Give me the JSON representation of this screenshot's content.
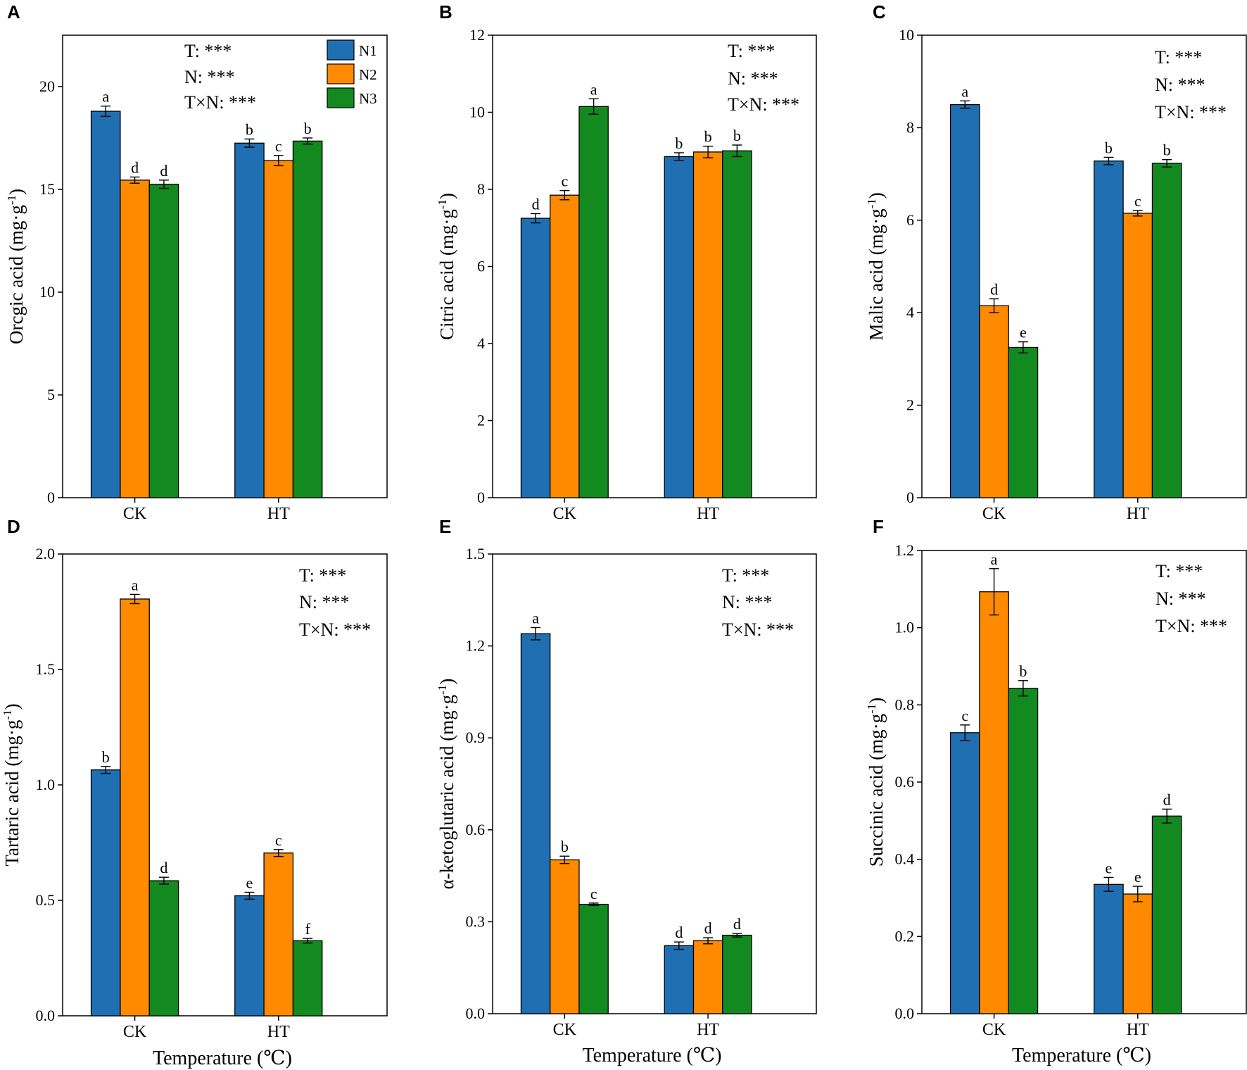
{
  "chart_data": [
    {
      "panel": "A",
      "type": "bar",
      "ylabel": "Orcgic acid (mg·g",
      "ylabel_sup": "-1",
      "ylabel_close": ")",
      "ylim": [
        0,
        22.5
      ],
      "yticks": [
        "0",
        "5",
        "10",
        "15",
        "20"
      ],
      "ytick_values": [
        0,
        5,
        10,
        15,
        20
      ],
      "categories": [
        "CK",
        "HT"
      ],
      "xlabel": "",
      "series": [
        {
          "name": "N1",
          "values": [
            18.8,
            17.25
          ],
          "errors": [
            0.25,
            0.2
          ],
          "letters": [
            "a",
            "b"
          ]
        },
        {
          "name": "N2",
          "values": [
            15.45,
            16.4
          ],
          "errors": [
            0.15,
            0.25
          ],
          "letters": [
            "d",
            "c"
          ]
        },
        {
          "name": "N3",
          "values": [
            15.25,
            17.35
          ],
          "errors": [
            0.2,
            0.15
          ],
          "letters": [
            "d",
            "b"
          ]
        }
      ],
      "stats": [
        "T: ***",
        "N: ***",
        "T×N: ***"
      ],
      "legend": [
        "N1",
        "N2",
        "N3"
      ]
    },
    {
      "panel": "B",
      "type": "bar",
      "ylabel": "Citric acid (mg·g",
      "ylabel_sup": "-1",
      "ylabel_close": ")",
      "ylim": [
        0,
        12
      ],
      "yticks": [
        "0",
        "2",
        "4",
        "6",
        "8",
        "10",
        "12"
      ],
      "ytick_values": [
        0,
        2,
        4,
        6,
        8,
        10,
        12
      ],
      "categories": [
        "CK",
        "HT"
      ],
      "xlabel": "",
      "series": [
        {
          "name": "N1",
          "values": [
            7.25,
            8.85
          ],
          "errors": [
            0.12,
            0.1
          ],
          "letters": [
            "d",
            "b"
          ]
        },
        {
          "name": "N2",
          "values": [
            7.85,
            8.97
          ],
          "errors": [
            0.12,
            0.15
          ],
          "letters": [
            "c",
            "b"
          ]
        },
        {
          "name": "N3",
          "values": [
            10.15,
            9.0
          ],
          "errors": [
            0.2,
            0.15
          ],
          "letters": [
            "a",
            "b"
          ]
        }
      ],
      "stats": [
        "T: ***",
        "N: ***",
        "T×N: ***"
      ]
    },
    {
      "panel": "C",
      "type": "bar",
      "ylabel": "Malic acid (mg·g",
      "ylabel_sup": "-1",
      "ylabel_close": ")",
      "ylim": [
        0,
        10
      ],
      "yticks": [
        "0",
        "2",
        "4",
        "6",
        "8",
        "10"
      ],
      "ytick_values": [
        0,
        2,
        4,
        6,
        8,
        10
      ],
      "categories": [
        "CK",
        "HT"
      ],
      "xlabel": "",
      "series": [
        {
          "name": "N1",
          "values": [
            8.5,
            7.28
          ],
          "errors": [
            0.08,
            0.08
          ],
          "letters": [
            "a",
            "b"
          ]
        },
        {
          "name": "N2",
          "values": [
            4.15,
            6.15
          ],
          "errors": [
            0.15,
            0.06
          ],
          "letters": [
            "d",
            "c"
          ]
        },
        {
          "name": "N3",
          "values": [
            3.25,
            7.23
          ],
          "errors": [
            0.12,
            0.08
          ],
          "letters": [
            "e",
            "b"
          ]
        }
      ],
      "stats": [
        "T: ***",
        "N: ***",
        "T×N: ***"
      ]
    },
    {
      "panel": "D",
      "type": "bar",
      "ylabel": "Tartaric acid (mg·g",
      "ylabel_sup": "-1",
      "ylabel_close": ")",
      "ylim": [
        0,
        2.0
      ],
      "yticks": [
        "0.0",
        "0.5",
        "1.0",
        "1.5",
        "2.0"
      ],
      "ytick_values": [
        0,
        0.5,
        1.0,
        1.5,
        2.0
      ],
      "categories": [
        "CK",
        "HT"
      ],
      "xlabel": "Temperature (℃)",
      "series": [
        {
          "name": "N1",
          "values": [
            1.065,
            0.52
          ],
          "errors": [
            0.015,
            0.015
          ],
          "letters": [
            "b",
            "e"
          ]
        },
        {
          "name": "N2",
          "values": [
            1.805,
            0.705
          ],
          "errors": [
            0.02,
            0.015
          ],
          "letters": [
            "a",
            "c"
          ]
        },
        {
          "name": "N3",
          "values": [
            0.585,
            0.325
          ],
          "errors": [
            0.015,
            0.01
          ],
          "letters": [
            "d",
            "f"
          ]
        }
      ],
      "stats": [
        "T: ***",
        "N: ***",
        "T×N: ***"
      ]
    },
    {
      "panel": "E",
      "type": "bar",
      "ylabel": "α-ketoglutaric acid (mg·g",
      "ylabel_sup": "-1",
      "ylabel_close": ")",
      "ylim": [
        0,
        1.5
      ],
      "yticks": [
        "0.0",
        "0.3",
        "0.6",
        "0.9",
        "1.2",
        "1.5"
      ],
      "ytick_values": [
        0,
        0.3,
        0.6,
        0.9,
        1.2,
        1.5
      ],
      "categories": [
        "CK",
        "HT"
      ],
      "xlabel": "Temperature (℃)",
      "series": [
        {
          "name": "N1",
          "values": [
            1.24,
            0.222
          ],
          "errors": [
            0.02,
            0.012
          ],
          "letters": [
            "a",
            "d"
          ]
        },
        {
          "name": "N2",
          "values": [
            0.502,
            0.238
          ],
          "errors": [
            0.012,
            0.01
          ],
          "letters": [
            "b",
            "d"
          ]
        },
        {
          "name": "N3",
          "values": [
            0.357,
            0.256
          ],
          "errors": [
            0.004,
            0.006
          ],
          "letters": [
            "c",
            "d"
          ]
        }
      ],
      "stats": [
        "T: ***",
        "N: ***",
        "T×N: ***"
      ]
    },
    {
      "panel": "F",
      "type": "bar",
      "ylabel": "Succinic acid (mg·g",
      "ylabel_sup": "-1",
      "ylabel_close": ")",
      "ylim": [
        0,
        1.2
      ],
      "yticks": [
        "0.0",
        "0.2",
        "0.4",
        "0.6",
        "0.8",
        "1.0",
        "1.2"
      ],
      "ytick_values": [
        0,
        0.2,
        0.4,
        0.6,
        0.8,
        1.0,
        1.2
      ],
      "categories": [
        "CK",
        "HT"
      ],
      "xlabel": "Temperature (℃)",
      "series": [
        {
          "name": "N1",
          "values": [
            0.728,
            0.335
          ],
          "errors": [
            0.02,
            0.018
          ],
          "letters": [
            "c",
            "e"
          ]
        },
        {
          "name": "N2",
          "values": [
            1.093,
            0.31
          ],
          "errors": [
            0.06,
            0.02
          ],
          "letters": [
            "a",
            "e"
          ]
        },
        {
          "name": "N3",
          "values": [
            0.843,
            0.512
          ],
          "errors": [
            0.02,
            0.018
          ],
          "letters": [
            "b",
            "d"
          ]
        }
      ],
      "stats": [
        "T: ***",
        "N: ***",
        "T×N: ***"
      ]
    }
  ],
  "colors": {
    "N1": "#1f6fb2",
    "N2": "#ff8a00",
    "N3": "#138a1f"
  }
}
